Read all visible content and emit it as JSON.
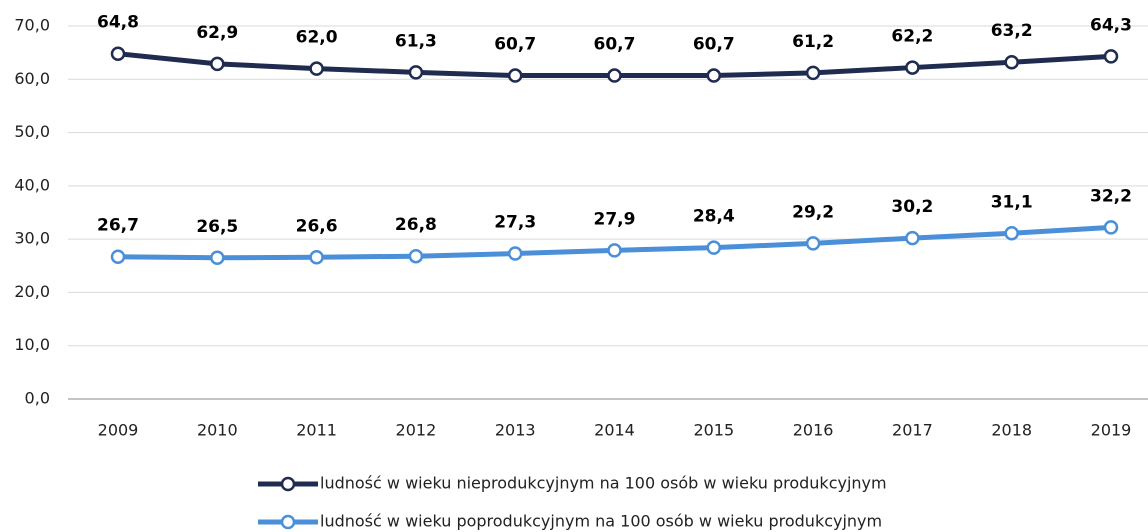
{
  "chart_data": {
    "type": "line",
    "categories": [
      "2009",
      "2010",
      "2011",
      "2012",
      "2013",
      "2014",
      "2015",
      "2016",
      "2017",
      "2018",
      "2019"
    ],
    "series": [
      {
        "name": "ludność w wieku nieprodukcyjnym na 100 osób w wieku produkcyjnym",
        "color": "#1f2c4f",
        "values": [
          64.8,
          62.9,
          62.0,
          61.3,
          60.7,
          60.7,
          60.7,
          61.2,
          62.2,
          63.2,
          64.3
        ],
        "value_labels": [
          "64,8",
          "62,9",
          "62,0",
          "61,3",
          "60,7",
          "60,7",
          "60,7",
          "61,2",
          "62,2",
          "63,2",
          "64,3"
        ]
      },
      {
        "name": "ludność w wieku poprodukcyjnym na 100 osób w wieku produkcyjnym",
        "color": "#4a8fd8",
        "values": [
          26.7,
          26.5,
          26.6,
          26.8,
          27.3,
          27.9,
          28.4,
          29.2,
          30.2,
          31.1,
          32.2
        ],
        "value_labels": [
          "26,7",
          "26,5",
          "26,6",
          "26,8",
          "27,3",
          "27,9",
          "28,4",
          "29,2",
          "30,2",
          "31,1",
          "32,2"
        ]
      }
    ],
    "ylim": [
      0,
      70
    ],
    "yticks": [
      {
        "value": 0,
        "label": "0,0"
      },
      {
        "value": 10,
        "label": "10,0"
      },
      {
        "value": 20,
        "label": "20,0"
      },
      {
        "value": 30,
        "label": "30,0"
      },
      {
        "value": 40,
        "label": "40,0"
      },
      {
        "value": 50,
        "label": "50,0"
      },
      {
        "value": 60,
        "label": "60,0"
      },
      {
        "value": 70,
        "label": "70,0"
      }
    ],
    "grid": true,
    "legend": "bottom"
  }
}
